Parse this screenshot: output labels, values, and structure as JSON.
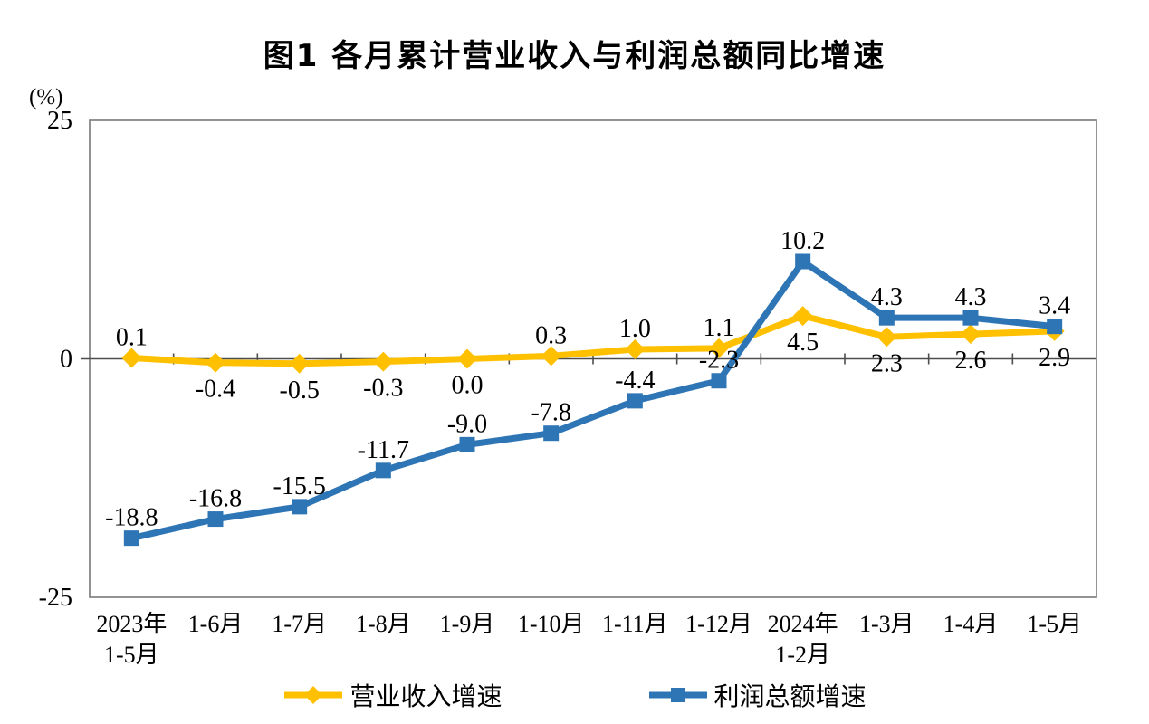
{
  "title": "图1  各月累计营业收入与利润总额同比增速",
  "unit_label": "(%)",
  "colors": {
    "revenue_series": "#FFC000",
    "profit_series": "#2E75B6",
    "plot_border": "#808080",
    "axis_line": "#4D4D4D",
    "text": "#000000"
  },
  "legend": {
    "position": "bottom-center",
    "items": [
      {
        "label": "营业收入增速",
        "marker": "diamond",
        "color": "#FFC000"
      },
      {
        "label": "利润总额增速",
        "marker": "square",
        "color": "#2E75B6"
      }
    ]
  },
  "chart_data": {
    "type": "line",
    "title": "图1  各月累计营业收入与利润总额同比增速",
    "ylabel": "(%)",
    "ylim": [
      -25,
      25
    ],
    "yticks": [
      {
        "value": 25,
        "label": "25"
      },
      {
        "value": 0,
        "label": "0"
      },
      {
        "value": -25,
        "label": "-25"
      }
    ],
    "grid": false,
    "legend_position": "bottom",
    "categories": [
      "2023年\n1-5月",
      "1-6月",
      "1-7月",
      "1-8月",
      "1-9月",
      "1-10月",
      "1-11月",
      "1-12月",
      "2024年\n1-2月",
      "1-3月",
      "1-4月",
      "1-5月"
    ],
    "series": [
      {
        "name": "营业收入增速",
        "color": "#FFC000",
        "marker": "diamond",
        "values": [
          0.1,
          -0.4,
          -0.5,
          -0.3,
          0.0,
          0.3,
          1.0,
          1.1,
          4.5,
          2.3,
          2.6,
          2.9
        ],
        "label_side": [
          "above",
          "below",
          "below",
          "below",
          "below",
          "above",
          "above",
          "above",
          "below",
          "below",
          "below",
          "below"
        ]
      },
      {
        "name": "利润总额增速",
        "color": "#2E75B6",
        "marker": "square",
        "values": [
          -18.8,
          -16.8,
          -15.5,
          -11.7,
          -9.0,
          -7.8,
          -4.4,
          -2.3,
          10.2,
          4.3,
          4.3,
          3.4
        ],
        "label_side": [
          "above",
          "above",
          "above",
          "above",
          "above",
          "above",
          "above",
          "above",
          "above",
          "above",
          "above",
          "above"
        ]
      }
    ]
  }
}
